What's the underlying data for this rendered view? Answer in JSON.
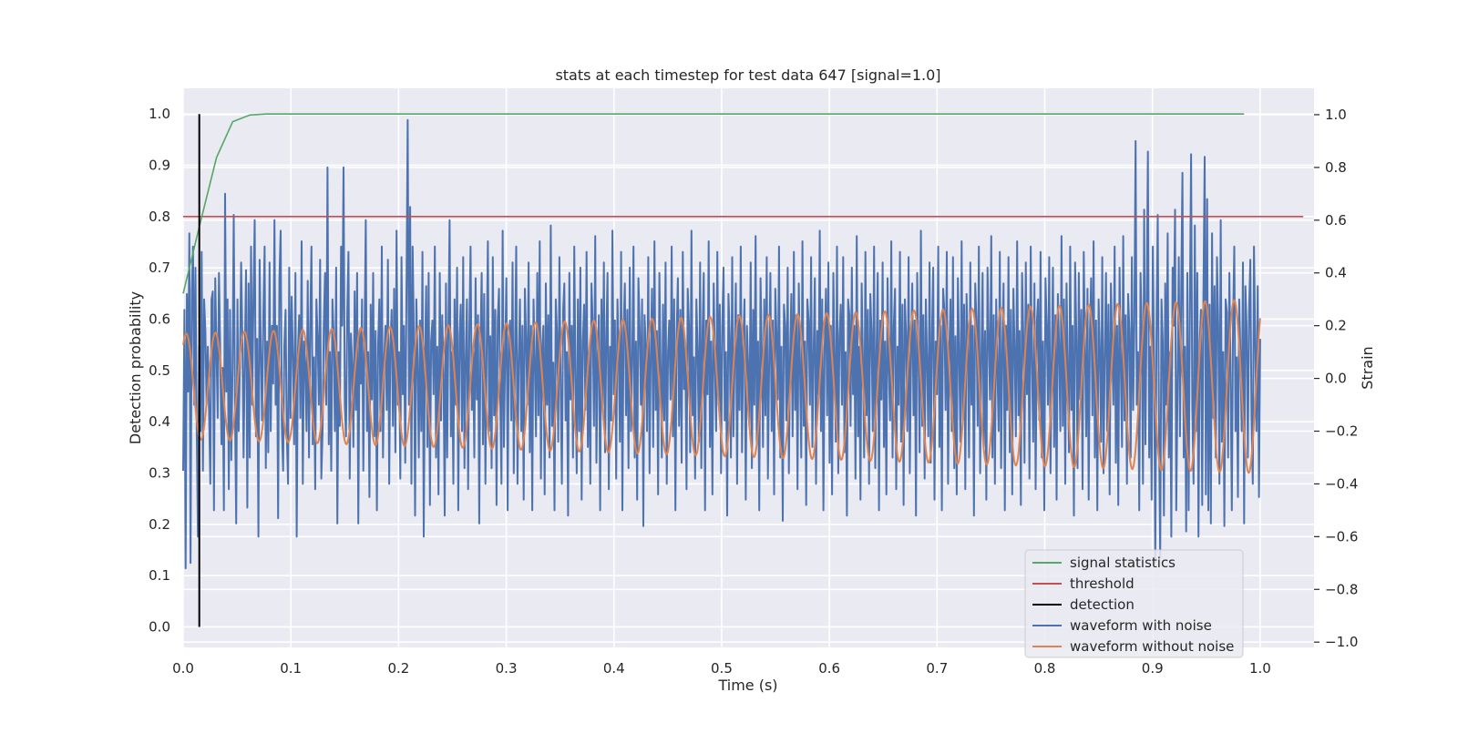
{
  "chart_data": {
    "type": "line",
    "title": "stats at each timestep for test data 647 [signal=1.0]",
    "xlabel": "Time (s)",
    "ylabel_left": "Detection probability",
    "ylabel_right": "Strain",
    "xlim": [
      0.0,
      1.05
    ],
    "ylim_left": [
      -0.04,
      1.05
    ],
    "ylim_right": [
      -1.02,
      1.1
    ],
    "x_ticks": [
      0.0,
      0.1,
      0.2,
      0.3,
      0.4,
      0.5,
      0.6,
      0.7,
      0.8,
      0.9,
      1.0
    ],
    "x_tick_labels": [
      "0.0",
      "0.1",
      "0.2",
      "0.3",
      "0.4",
      "0.5",
      "0.6",
      "0.7",
      "0.8",
      "0.9",
      "1.0"
    ],
    "y_left_ticks": [
      0.0,
      0.1,
      0.2,
      0.3,
      0.4,
      0.5,
      0.6,
      0.7,
      0.8,
      0.9,
      1.0
    ],
    "y_left_tick_labels": [
      "0.0",
      "0.1",
      "0.2",
      "0.3",
      "0.4",
      "0.5",
      "0.6",
      "0.7",
      "0.8",
      "0.9",
      "1.0"
    ],
    "y_right_ticks": [
      -1.0,
      -0.8,
      -0.6,
      -0.4,
      -0.2,
      0.0,
      0.2,
      0.4,
      0.6,
      0.8,
      1.0
    ],
    "y_right_tick_labels": [
      "−1.0",
      "−0.8",
      "−0.6",
      "−0.4",
      "−0.2",
      "0.0",
      "0.2",
      "0.4",
      "0.6",
      "0.8",
      "1.0"
    ],
    "grid": true,
    "legend_position": "lower-right",
    "background_color": "#eaeaf2",
    "series": [
      {
        "name": "signal statistics",
        "axis": "left",
        "color": "#55a868",
        "x": [
          0.0,
          0.015,
          0.031,
          0.046,
          0.062,
          0.077,
          0.2,
          0.4,
          0.6,
          0.8,
          0.985
        ],
        "y": [
          0.65,
          0.78,
          0.915,
          0.985,
          0.998,
          1.0,
          1.0,
          1.0,
          1.0,
          1.0,
          1.0
        ]
      },
      {
        "name": "threshold",
        "axis": "left",
        "color": "#c44e52",
        "x": [
          0.0,
          1.04
        ],
        "y": [
          0.8,
          0.8
        ]
      },
      {
        "name": "detection",
        "axis": "left",
        "color": "#000000",
        "x": [
          0.015,
          0.015
        ],
        "y": [
          0.0,
          1.0
        ]
      },
      {
        "name": "waveform with noise",
        "axis": "right",
        "color": "#4c72b0",
        "x_start": 0.0,
        "x_end": 1.0,
        "y": [
          -0.35,
          0.26,
          -0.72,
          0.32,
          -0.05,
          0.55,
          -0.7,
          0.33,
          0.5,
          -0.1,
          0.42,
          -0.2,
          -0.6,
          0.12,
          -0.2,
          0.48,
          -0.35,
          0.3,
          0.18,
          -0.1,
          0.12,
          -0.12,
          -0.4,
          0.3,
          0.33,
          -0.5,
          0.38,
          0.1,
          -0.15,
          0.4,
          0.12,
          -0.25,
          0.04,
          -0.5,
          0.7,
          -0.05,
          0.3,
          -0.42,
          0.26,
          -0.31,
          0.04,
          0.62,
          -0.12,
          -0.55,
          0.3,
          -0.2,
          0.06,
          0.44,
          0.15,
          -0.3,
          0.1,
          0.41,
          -0.49,
          0.36,
          -0.3,
          0.5,
          -0.1,
          0.32,
          0.6,
          -0.22,
          0.15,
          -0.6,
          0.45,
          0.1,
          -0.16,
          0.24,
          0.5,
          -0.34,
          0.14,
          -0.28,
          0.44,
          -0.2,
          0.2,
          -0.02,
          0.6,
          -0.1,
          0.2,
          -0.53,
          0.38,
          0.56,
          -0.18,
          -0.35,
          0.12,
          0.26,
          -0.2,
          -0.4,
          0.42,
          -0.15,
          0.31,
          0.08,
          -0.25,
          0.4,
          -0.6,
          0.1,
          0.24,
          -0.15,
          0.52,
          -0.4,
          0.14,
          0.06,
          -0.2,
          0.37,
          -0.3,
          0.2,
          0.5,
          -0.25,
          0.08,
          -0.42,
          0.3,
          0.15,
          -0.1,
          0.45,
          -0.38,
          -0.2,
          0.2,
          0.4,
          -0.1,
          0.8,
          -0.25,
          0.1,
          -0.35,
          0.3,
          0.16,
          -0.2,
          0.42,
          -0.55,
          0.1,
          -0.18,
          0.5,
          0.2,
          0.8,
          -0.1,
          -0.22,
          0.25,
          0.48,
          -0.38,
          0.17,
          0.05,
          -0.26,
          0.33,
          -0.12,
          0.4,
          -0.55,
          0.18,
          -0.02,
          0.3,
          -0.35,
          0.14,
          0.6,
          -0.2,
          0.1,
          -0.45,
          0.28,
          -0.08,
          0.4,
          -0.22,
          0.18,
          -0.5,
          0.12,
          0.3,
          -0.2,
          0.5,
          -0.3,
          0.08,
          0.2,
          -0.12,
          0.45,
          -0.4,
          0.12,
          0.26,
          -0.18,
          0.34,
          -0.28,
          0.56,
          -0.1,
          0.1,
          -0.38,
          0.46,
          -0.06,
          0.2,
          -0.32,
          0.3,
          0.98,
          -0.1,
          0.65,
          -0.4,
          0.5,
          0.16,
          -0.52,
          0.3,
          0.08,
          -0.3,
          0.22,
          -0.2,
          0.48,
          -0.6,
          0.1,
          0.35,
          -0.26,
          0.4,
          -0.48,
          0.14,
          0.22,
          -0.06,
          0.5,
          -0.3,
          0.12,
          -0.44,
          0.4,
          -0.16,
          0.24,
          0.02,
          -0.52,
          0.36,
          -0.3,
          0.2,
          0.6,
          -0.22,
          0.1,
          -0.4,
          0.3,
          -0.1,
          0.42,
          -0.5,
          0.16,
          0.28,
          -0.2,
          0.46,
          -0.34,
          0.06,
          0.3,
          -0.42,
          0.2,
          0.5,
          -0.12,
          0.1,
          -0.3,
          0.38,
          -0.08,
          0.24,
          -0.55,
          0.14,
          0.4,
          -0.25,
          0.32,
          -0.4,
          0.1,
          0.52,
          -0.2,
          0.16,
          -0.34,
          0.46,
          -0.14,
          0.26,
          -0.48,
          0.22,
          0.34,
          -0.06,
          -0.4,
          0.56,
          -0.26,
          0.1,
          0.38,
          -0.5,
          0.16,
          0.22,
          -0.16,
          0.44,
          -0.36,
          0.12,
          0.5,
          -0.4,
          0.06,
          0.3,
          -0.2,
          0.2,
          -0.46,
          0.34,
          0.14,
          -0.1,
          0.44,
          -0.28,
          0.2,
          -0.5,
          0.3,
          0.08,
          -0.22,
          0.4,
          -0.14,
          0.52,
          -0.38,
          0.12,
          0.2,
          -0.44,
          0.36,
          -0.1,
          0.24,
          -0.3,
          0.58,
          -0.18,
          0.06,
          -0.5,
          0.3,
          0.18,
          -0.24,
          0.46,
          -0.04,
          -0.4,
          0.26,
          0.36,
          -0.16,
          0.1,
          -0.52,
          0.4,
          -0.08,
          0.2,
          -0.3,
          0.5,
          0.02,
          -0.36,
          0.3,
          -0.2,
          0.42,
          -0.46,
          0.14,
          0.28,
          -0.12,
          0.48,
          -0.26,
          0.1,
          -0.4,
          0.36,
          0.2,
          -0.18,
          0.54,
          -0.32,
          0.08,
          0.24,
          -0.5,
          0.3,
          -0.1,
          0.44,
          -0.28,
          0.16,
          0.4,
          -0.42,
          0.12,
          -0.16,
          0.56,
          -0.06,
          0.22,
          -0.38,
          0.3,
          0.1,
          -0.24,
          0.48,
          -0.5,
          0.18,
          0.36,
          -0.14,
          0.26,
          -0.34,
          0.42,
          -0.2,
          0.06,
          0.5,
          -0.3,
          0.14,
          -0.46,
          0.38,
          0.2,
          -0.1,
          0.3,
          -0.56,
          0.24,
          0.12,
          -0.2,
          0.46,
          -0.36,
          0.08,
          0.34,
          -0.26,
          0.52,
          -0.12,
          0.18,
          -0.44,
          0.4,
          0.06,
          -0.3,
          0.28,
          -0.16,
          0.44,
          -0.4,
          0.1,
          0.22,
          -0.08,
          0.5,
          -0.22,
          0.3,
          -0.5,
          0.16,
          0.38,
          -0.18,
          0.26,
          -0.32,
          0.48,
          -0.04,
          0.12,
          -0.42,
          0.34,
          0.2,
          -0.28,
          0.56,
          -0.14,
          0.08,
          -0.38,
          0.3,
          0.1,
          -0.24,
          0.44,
          -0.34,
          0.18,
          0.4,
          -0.5,
          0.22,
          -0.06,
          0.52,
          -0.26,
          0.14,
          -0.44,
          0.36,
          0.06,
          -0.2,
          0.48,
          -0.1,
          0.28,
          -0.36,
          0.2,
          0.42,
          -0.16,
          0.1,
          -0.52,
          0.32,
          0.16,
          -0.3,
          0.46,
          -0.22,
          0.08,
          0.36,
          -0.4,
          0.24,
          -0.12,
          0.5,
          -0.28,
          0.12,
          0.3,
          -0.46,
          0.2,
          0.04,
          -0.18,
          0.44,
          -0.34,
          0.26,
          -0.1,
          0.54,
          -0.24,
          0.14,
          -0.5,
          0.38,
          0.1,
          -0.26,
          0.3,
          -0.14,
          0.46,
          -0.38,
          0.06,
          0.4,
          -0.2,
          0.22,
          -0.44,
          0.34,
          0.16,
          -0.08,
          0.5,
          -0.3,
          0.12,
          -0.54,
          0.28,
          0.2,
          -0.16,
          0.42,
          -0.36,
          0.1,
          0.32,
          -0.22,
          0.48,
          -0.12,
          0.24,
          -0.42,
          0.36,
          0.04,
          -0.3,
          0.52,
          -0.18,
          0.14,
          -0.48,
          0.3,
          0.22,
          -0.1,
          0.46,
          -0.26,
          0.08,
          0.38,
          -0.4,
          0.18,
          -0.06,
          0.56,
          -0.2,
          0.3,
          -0.5,
          0.12,
          0.34,
          -0.14,
          0.44,
          -0.32,
          0.2,
          -0.44,
          0.4,
          0.08,
          -0.24,
          0.5,
          -0.36,
          0.16,
          0.28,
          -0.1,
          0.46,
          -0.28,
          0.1,
          -0.52,
          0.3,
          0.24,
          -0.18,
          0.42,
          -0.06,
          0.2,
          -0.38,
          0.54,
          -0.22,
          0.12,
          -0.46,
          0.36,
          0.06,
          -0.3,
          0.48,
          -0.14,
          0.26,
          -0.4,
          0.32,
          0.18,
          -0.2,
          0.5,
          -0.34,
          0.1,
          0.4,
          -0.5,
          0.22,
          -0.08,
          0.44,
          -0.26,
          0.14,
          -0.44,
          0.38,
          0.04,
          -0.16,
          0.52,
          -0.3,
          0.2,
          0.34,
          -0.42,
          0.12,
          -0.1,
          0.48,
          -0.24,
          0.28,
          -0.48,
          0.3,
          0.16,
          -0.2,
          0.46,
          -0.36,
          0.08,
          0.36,
          -0.14,
          0.22,
          -0.52,
          0.4,
          0.1,
          -0.28,
          0.56,
          -0.18,
          0.24,
          -0.38,
          0.3,
          0.06,
          -0.22,
          0.44,
          -0.32,
          0.18,
          0.42,
          -0.46,
          0.14,
          -0.06,
          0.5,
          -0.26,
          0.2,
          -0.5,
          0.34,
          0.26,
          -0.12,
          0.48,
          -0.4,
          0.1,
          0.3,
          -0.2,
          0.46,
          -0.34,
          0.16,
          -0.44,
          0.38,
          0.08,
          -0.24,
          0.52,
          -0.16,
          0.28,
          -0.42,
          0.32,
          0.12,
          -0.3,
          0.44,
          -0.1,
          0.2,
          -0.52,
          0.36,
          0.22,
          -0.18,
          0.5,
          -0.36,
          0.06,
          0.4,
          -0.26,
          0.18,
          -0.46,
          0.42,
          0.14,
          -0.08,
          0.54,
          -0.3,
          0.24,
          -0.4,
          0.3,
          0.04,
          -0.2,
          0.48,
          -0.34,
          0.12,
          0.36,
          -0.5,
          0.2,
          -0.12,
          0.46,
          -0.28,
          0.26,
          -0.44,
          0.34,
          0.1,
          -0.22,
          0.52,
          -0.14,
          0.18,
          -0.48,
          0.4,
          0.16,
          -0.32,
          0.44,
          -0.06,
          0.28,
          -0.38,
          0.5,
          0.08,
          -0.24,
          0.36,
          -0.42,
          0.22,
          0.3,
          -0.16,
          0.48,
          -0.3,
          0.14,
          -0.5,
          0.38,
          0.2,
          -0.1,
          0.46,
          -0.36,
          0.06,
          0.42,
          -0.26,
          0.24,
          -0.46,
          0.32,
          0.12,
          -0.2,
          0.54,
          -0.18,
          0.3,
          -0.4,
          0.36,
          0.04,
          -0.28,
          0.5,
          -0.12,
          0.2,
          -0.52,
          0.44,
          0.16,
          -0.34,
          0.4,
          -0.08,
          0.26,
          -0.42,
          0.48,
          0.1,
          -0.22,
          0.34,
          -0.46,
          0.18,
          0.38,
          -0.14,
          0.52,
          -0.3,
          0.22,
          -0.5,
          0.3,
          0.12,
          -0.24,
          0.46,
          -0.36,
          0.08,
          0.4,
          -0.2,
          0.28,
          -0.44,
          0.36,
          0.14,
          -0.1,
          0.5,
          -0.32,
          0.2,
          -0.48,
          0.42,
          0.06,
          -0.26,
          0.54,
          -0.16,
          0.24,
          -0.4,
          0.32,
          0.18,
          -0.3,
          0.46,
          -0.12,
          0.2,
          0.9,
          -0.1,
          0.1,
          -0.5,
          0.4,
          0.2,
          -0.4,
          0.64,
          -0.25,
          0.3,
          0.86,
          -0.3,
          0.12,
          -0.46,
          0.5,
          0.06,
          -0.7,
          0.22,
          0.62,
          -0.2,
          -0.68,
          0.3,
          0.14,
          -0.52,
          0.36,
          -0.1,
          0.55,
          -0.3,
          0.1,
          -0.6,
          0.42,
          0.2,
          0.64,
          -0.5,
          -0.05,
          0.46,
          -0.22,
          0.34,
          0.78,
          -0.3,
          0.12,
          -0.58,
          0.4,
          -0.5,
          0.24,
          0.85,
          -0.1,
          -0.4,
          0.58,
          -0.2,
          0.4,
          -0.6,
          0.14,
          0.26,
          -0.48,
          0.3,
          0.84,
          -0.44,
          0.68,
          -0.5,
          0.28,
          -0.55,
          0.55,
          -0.15,
          0.35,
          -0.3,
          0.46,
          0.2,
          -0.4,
          0.6,
          -0.24,
          0.1,
          -0.56,
          0.3,
          0.25,
          -0.3,
          0.4,
          0.02,
          -0.5,
          0.2,
          0.5,
          -0.2,
          0.08,
          -0.45,
          0.3,
          0.1,
          -0.2,
          0.44,
          -0.55,
          0.35,
          0.2,
          -0.3,
          0.25,
          0.45,
          -0.15,
          -0.4,
          0.5,
          0.14,
          -0.2,
          0.35,
          -0.45,
          0.15
        ]
      },
      {
        "name": "waveform without noise",
        "axis": "right",
        "color": "#dd8452",
        "x_start": 0.0,
        "x_end": 1.0,
        "amplitude_start": 0.2,
        "amplitude_end": 0.33,
        "cycles": 37,
        "offset": -0.03
      }
    ],
    "legend": [
      {
        "label": "signal statistics",
        "color": "#55a868"
      },
      {
        "label": "threshold",
        "color": "#c44e52"
      },
      {
        "label": "detection",
        "color": "#000000"
      },
      {
        "label": "waveform with noise",
        "color": "#4c72b0"
      },
      {
        "label": "waveform without noise",
        "color": "#dd8452"
      }
    ]
  }
}
